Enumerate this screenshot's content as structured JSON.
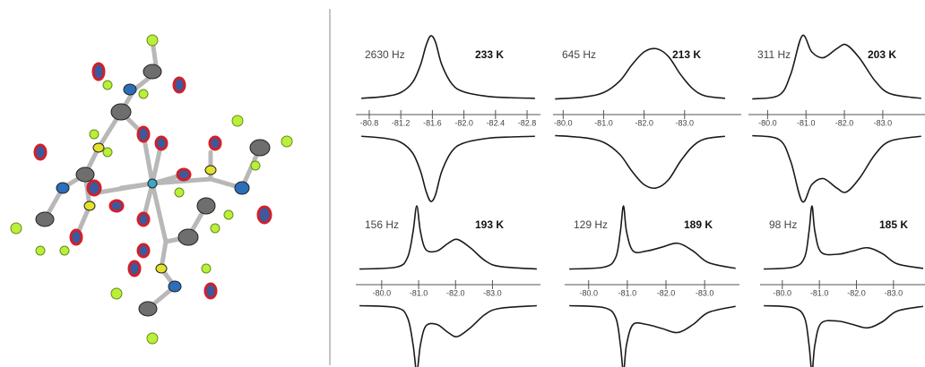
{
  "chart_data": [
    {
      "type": "line",
      "linewidth": "2630 Hz",
      "temperature": "233 K",
      "x": [
        -80.7,
        -81.0,
        -81.2,
        -81.35,
        -81.45,
        -81.52,
        -81.58,
        -81.64,
        -81.72,
        -81.85,
        -82.0,
        -82.3,
        -82.6,
        -82.9
      ],
      "series": [
        {
          "color": "#1a1a1a",
          "ylim": [
            0,
            1
          ],
          "values": [
            0.03,
            0.06,
            0.12,
            0.28,
            0.55,
            0.85,
            1.0,
            0.9,
            0.55,
            0.25,
            0.13,
            0.06,
            0.04,
            0.03
          ]
        },
        {
          "color": "#1a1a1a",
          "ylim": [
            -1,
            0
          ],
          "values": [
            -0.03,
            -0.06,
            -0.12,
            -0.28,
            -0.55,
            -0.85,
            -1.0,
            -0.9,
            -0.55,
            -0.25,
            -0.13,
            -0.06,
            -0.04,
            -0.03
          ]
        }
      ],
      "xlim": [
        -80.63,
        -82.97
      ],
      "xticks": [
        -80.8,
        -81.2,
        -81.6,
        {
          "value": -82,
          "label": "-82.0"
        },
        -82.4,
        -82.8
      ]
    },
    {
      "type": "line",
      "linewidth": "645 Hz",
      "temperature": "213 K",
      "x": [
        -79.8,
        -80.5,
        -81.0,
        -81.4,
        -81.7,
        -82.0,
        -82.3,
        -82.6,
        -82.9,
        -83.2,
        -83.5,
        -84.0
      ],
      "series": [
        {
          "color": "#1a1a1a",
          "ylim": [
            0,
            1
          ],
          "values": [
            0.02,
            0.05,
            0.12,
            0.3,
            0.55,
            0.75,
            0.8,
            0.68,
            0.4,
            0.18,
            0.07,
            0.03
          ]
        },
        {
          "color": "#1a1a1a",
          "ylim": [
            -1,
            0
          ],
          "values": [
            -0.02,
            -0.05,
            -0.12,
            -0.3,
            -0.55,
            -0.75,
            -0.8,
            -0.68,
            -0.4,
            -0.18,
            -0.07,
            -0.03
          ]
        }
      ],
      "xlim": [
        -79.75,
        -84.4
      ],
      "xticks": [
        {
          "value": -80,
          "label": "-80.0"
        },
        {
          "value": -81,
          "label": "-81.0"
        },
        {
          "value": -82,
          "label": "-82.0"
        },
        {
          "value": -83,
          "label": "-83.0"
        }
      ]
    },
    {
      "type": "line",
      "linewidth": "311 Hz",
      "temperature": "203 K",
      "x": [
        -79.6,
        -80.3,
        -80.6,
        -80.9,
        -81.15,
        -81.45,
        -81.8,
        -82.05,
        -82.4,
        -82.8,
        -83.2,
        -84.0
      ],
      "series": [
        {
          "color": "#1a1a1a",
          "ylim": [
            0,
            1
          ],
          "values": [
            0.02,
            0.08,
            0.4,
            1.0,
            0.75,
            0.66,
            0.8,
            0.86,
            0.65,
            0.3,
            0.1,
            0.03
          ]
        },
        {
          "color": "#1a1a1a",
          "ylim": [
            -1,
            0
          ],
          "values": [
            -0.02,
            -0.08,
            -0.4,
            -1.0,
            -0.75,
            -0.66,
            -0.8,
            -0.86,
            -0.65,
            -0.3,
            -0.1,
            -0.03
          ]
        }
      ],
      "xlim": [
        -79.5,
        -84.1
      ],
      "xticks": [
        {
          "value": -80,
          "label": "-80.0"
        },
        {
          "value": -81,
          "label": "-81.0"
        },
        {
          "value": -82,
          "label": "-82.0"
        },
        {
          "value": -83,
          "label": "-83.0"
        }
      ]
    },
    {
      "type": "line",
      "linewidth": "156 Hz",
      "temperature": "193 K",
      "x": [
        -79.4,
        -80.4,
        -80.7,
        -80.85,
        -80.95,
        -81.05,
        -81.2,
        -81.5,
        -81.8,
        -82.05,
        -82.4,
        -82.8,
        -83.2,
        -84.2
      ],
      "series": [
        {
          "color": "#1a1a1a",
          "ylim": [
            0,
            1
          ],
          "values": [
            0.02,
            0.05,
            0.2,
            0.6,
            1.0,
            0.6,
            0.32,
            0.3,
            0.42,
            0.48,
            0.35,
            0.15,
            0.06,
            0.02
          ]
        },
        {
          "color": "#1a1a1a",
          "ylim": [
            -1,
            0
          ],
          "values": [
            -0.02,
            -0.05,
            -0.2,
            -0.6,
            -1.0,
            -0.6,
            -0.32,
            -0.3,
            -0.42,
            -0.48,
            -0.35,
            -0.15,
            -0.06,
            -0.02
          ]
        }
      ],
      "xlim": [
        -79.3,
        -84.3
      ],
      "xticks": [
        {
          "value": -80,
          "label": "-80.0"
        },
        {
          "value": -81,
          "label": "-81.0"
        },
        {
          "value": -82,
          "label": "-82.0"
        },
        {
          "value": -83,
          "label": "-83.0"
        }
      ]
    },
    {
      "type": "line",
      "linewidth": "129 Hz",
      "temperature": "189 K",
      "x": [
        -79.5,
        -80.4,
        -80.7,
        -80.82,
        -80.9,
        -80.98,
        -81.15,
        -81.5,
        -81.9,
        -82.3,
        -82.7,
        -83.1,
        -83.8
      ],
      "series": [
        {
          "color": "#1a1a1a",
          "ylim": [
            0,
            1
          ],
          "values": [
            0.02,
            0.05,
            0.2,
            0.6,
            1.0,
            0.6,
            0.3,
            0.3,
            0.36,
            0.42,
            0.3,
            0.12,
            0.03
          ]
        },
        {
          "color": "#1a1a1a",
          "ylim": [
            -1,
            0
          ],
          "values": [
            -0.02,
            -0.05,
            -0.2,
            -0.6,
            -1.0,
            -0.6,
            -0.3,
            -0.3,
            -0.36,
            -0.42,
            -0.3,
            -0.12,
            -0.03
          ]
        }
      ],
      "xlim": [
        -79.38,
        -83.9
      ],
      "xticks": [
        {
          "value": -80,
          "label": "-80.0"
        },
        {
          "value": -81,
          "label": "-81.0"
        },
        {
          "value": -82,
          "label": "-82.0"
        },
        {
          "value": -83,
          "label": "-83.0"
        }
      ]
    },
    {
      "type": "line",
      "linewidth": "98 Hz",
      "temperature": "185 K",
      "x": [
        -79.5,
        -80.3,
        -80.6,
        -80.72,
        -80.8,
        -80.88,
        -81.05,
        -81.5,
        -81.9,
        -82.3,
        -82.7,
        -83.1,
        -83.8
      ],
      "series": [
        {
          "color": "#1a1a1a",
          "ylim": [
            0,
            1
          ],
          "values": [
            0.02,
            0.05,
            0.2,
            0.6,
            1.0,
            0.6,
            0.28,
            0.25,
            0.3,
            0.35,
            0.26,
            0.1,
            0.03
          ]
        },
        {
          "color": "#1a1a1a",
          "ylim": [
            -1,
            0
          ],
          "values": [
            -0.02,
            -0.05,
            -0.2,
            -0.6,
            -1.0,
            -0.6,
            -0.28,
            -0.25,
            -0.3,
            -0.35,
            -0.26,
            -0.1,
            -0.03
          ]
        }
      ],
      "xlim": [
        -79.4,
        -83.85
      ],
      "xticks": [
        {
          "value": -80,
          "label": "-80.0"
        },
        {
          "value": -81,
          "label": "-81.0"
        },
        {
          "value": -82,
          "label": "-82.0"
        },
        {
          "value": -83,
          "label": "-83.0"
        }
      ]
    }
  ]
}
